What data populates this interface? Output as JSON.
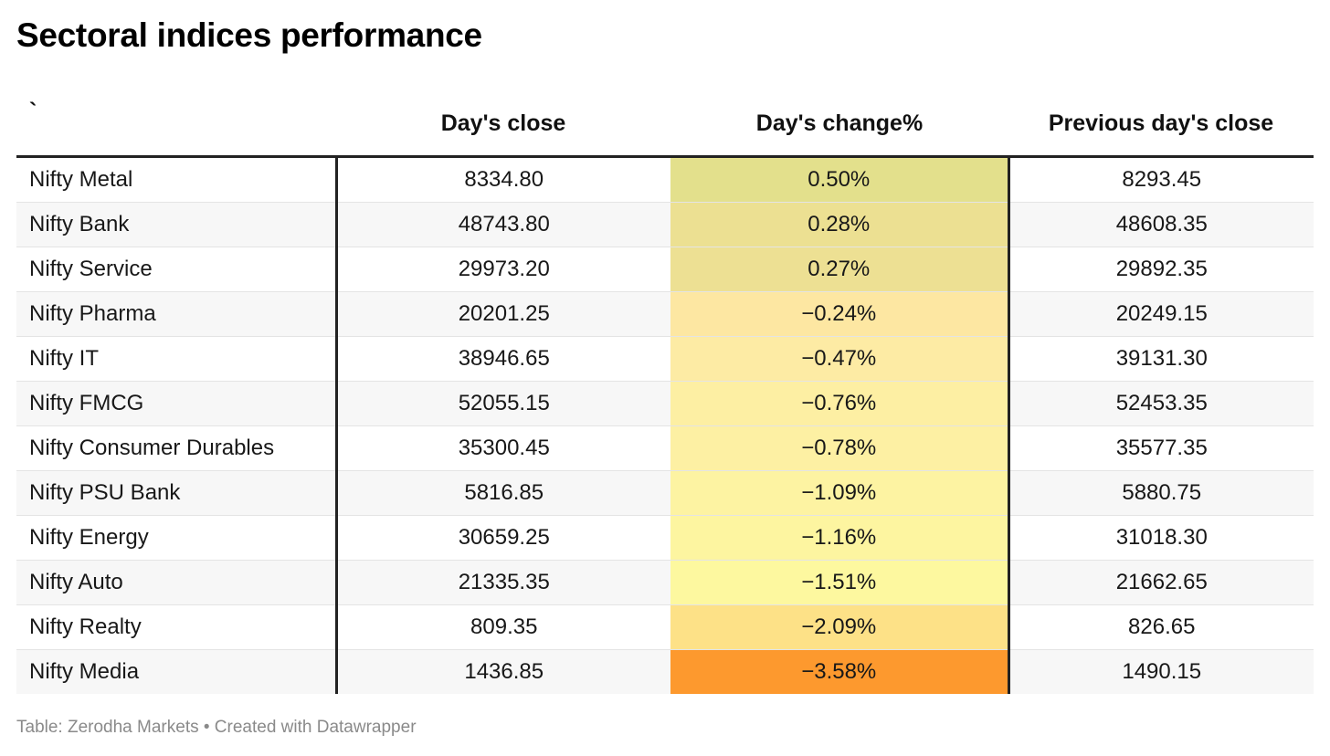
{
  "title": "Sectoral indices performance",
  "footer": "Table: Zerodha Markets • Created with Datawrapper",
  "chart_data": {
    "type": "table",
    "title": "Sectoral indices performance",
    "columns": [
      "`",
      "Day's close",
      "Day's change%",
      "Previous day's close"
    ],
    "heat_colors": [
      "#e3e08c",
      "#ece092",
      "#ede093",
      "#fde7a2",
      "#fdeba4",
      "#fdefa3",
      "#fdf0a3",
      "#fdf3a2",
      "#fdf5a0",
      "#fdf89f",
      "#fde187",
      "#fd992e"
    ],
    "rows": [
      {
        "name": "Nifty Metal",
        "close": "8334.80",
        "change": "0.50%",
        "change_value": 0.5,
        "prev": "8293.45"
      },
      {
        "name": "Nifty Bank",
        "close": "48743.80",
        "change": "0.28%",
        "change_value": 0.28,
        "prev": "48608.35"
      },
      {
        "name": "Nifty Service",
        "close": "29973.20",
        "change": "0.27%",
        "change_value": 0.27,
        "prev": "29892.35"
      },
      {
        "name": "Nifty Pharma",
        "close": "20201.25",
        "change": "−0.24%",
        "change_value": -0.24,
        "prev": "20249.15"
      },
      {
        "name": "Nifty IT",
        "close": "38946.65",
        "change": "−0.47%",
        "change_value": -0.47,
        "prev": "39131.30"
      },
      {
        "name": "Nifty FMCG",
        "close": "52055.15",
        "change": "−0.76%",
        "change_value": -0.76,
        "prev": "52453.35"
      },
      {
        "name": "Nifty Consumer Durables",
        "close": "35300.45",
        "change": "−0.78%",
        "change_value": -0.78,
        "prev": "35577.35"
      },
      {
        "name": "Nifty PSU Bank",
        "close": "5816.85",
        "change": "−1.09%",
        "change_value": -1.09,
        "prev": "5880.75"
      },
      {
        "name": "Nifty Energy",
        "close": "30659.25",
        "change": "−1.16%",
        "change_value": -1.16,
        "prev": "31018.30"
      },
      {
        "name": "Nifty Auto",
        "close": "21335.35",
        "change": "−1.51%",
        "change_value": -1.51,
        "prev": "21662.65"
      },
      {
        "name": "Nifty Realty",
        "close": "809.35",
        "change": "−2.09%",
        "change_value": -2.09,
        "prev": "826.65"
      },
      {
        "name": "Nifty Media",
        "close": "1436.85",
        "change": "−3.58%",
        "change_value": -3.58,
        "prev": "1490.15"
      }
    ]
  }
}
